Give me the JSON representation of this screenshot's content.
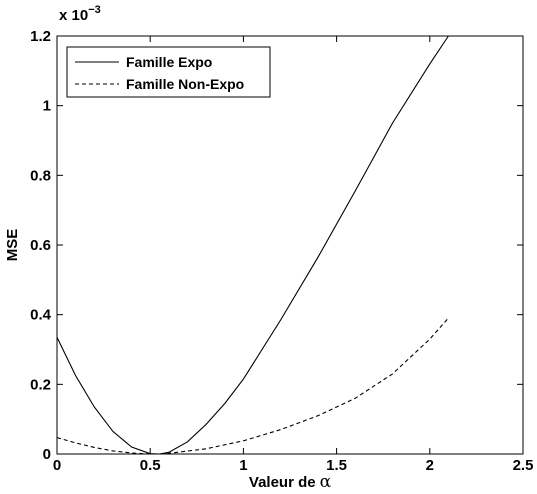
{
  "chart_data": {
    "type": "line",
    "title": "",
    "xlabel": "Valeur de",
    "xlabel_symbol": "α",
    "ylabel": "MSE",
    "y_multiplier": "x 10",
    "y_multiplier_exp": "−3",
    "xlim": [
      0,
      2.5
    ],
    "ylim": [
      0,
      1.2
    ],
    "xticks": [
      0,
      0.5,
      1,
      1.5,
      2,
      2.5
    ],
    "xtick_labels": [
      "0",
      "0.5",
      "1",
      "1.5",
      "2",
      "2.5"
    ],
    "yticks": [
      0,
      0.2,
      0.4,
      0.6,
      0.8,
      1.0,
      1.2
    ],
    "ytick_labels": [
      "0",
      "0.2",
      "0.4",
      "0.6",
      "0.8",
      "1",
      "1.2"
    ],
    "grid": false,
    "legend_position": "top-left",
    "series": [
      {
        "name": "Famille Expo",
        "line_style": "solid",
        "color": "#000000",
        "x": [
          0,
          0.1,
          0.2,
          0.3,
          0.4,
          0.5,
          0.55,
          0.6,
          0.7,
          0.8,
          0.9,
          1.0,
          1.2,
          1.4,
          1.6,
          1.8,
          2.0,
          2.1
        ],
        "y": [
          0.335,
          0.225,
          0.135,
          0.065,
          0.02,
          0.001,
          0.0,
          0.005,
          0.035,
          0.085,
          0.145,
          0.215,
          0.385,
          0.565,
          0.755,
          0.95,
          1.12,
          1.2
        ]
      },
      {
        "name": "Famille Non-Expo",
        "line_style": "dashed",
        "color": "#000000",
        "x": [
          0,
          0.1,
          0.2,
          0.3,
          0.4,
          0.5,
          0.55,
          0.6,
          0.8,
          1.0,
          1.2,
          1.4,
          1.6,
          1.8,
          2.0,
          2.1
        ],
        "y": [
          0.047,
          0.032,
          0.019,
          0.009,
          0.003,
          0.0,
          0.0,
          0.002,
          0.015,
          0.038,
          0.07,
          0.11,
          0.16,
          0.23,
          0.33,
          0.39
        ]
      }
    ]
  }
}
